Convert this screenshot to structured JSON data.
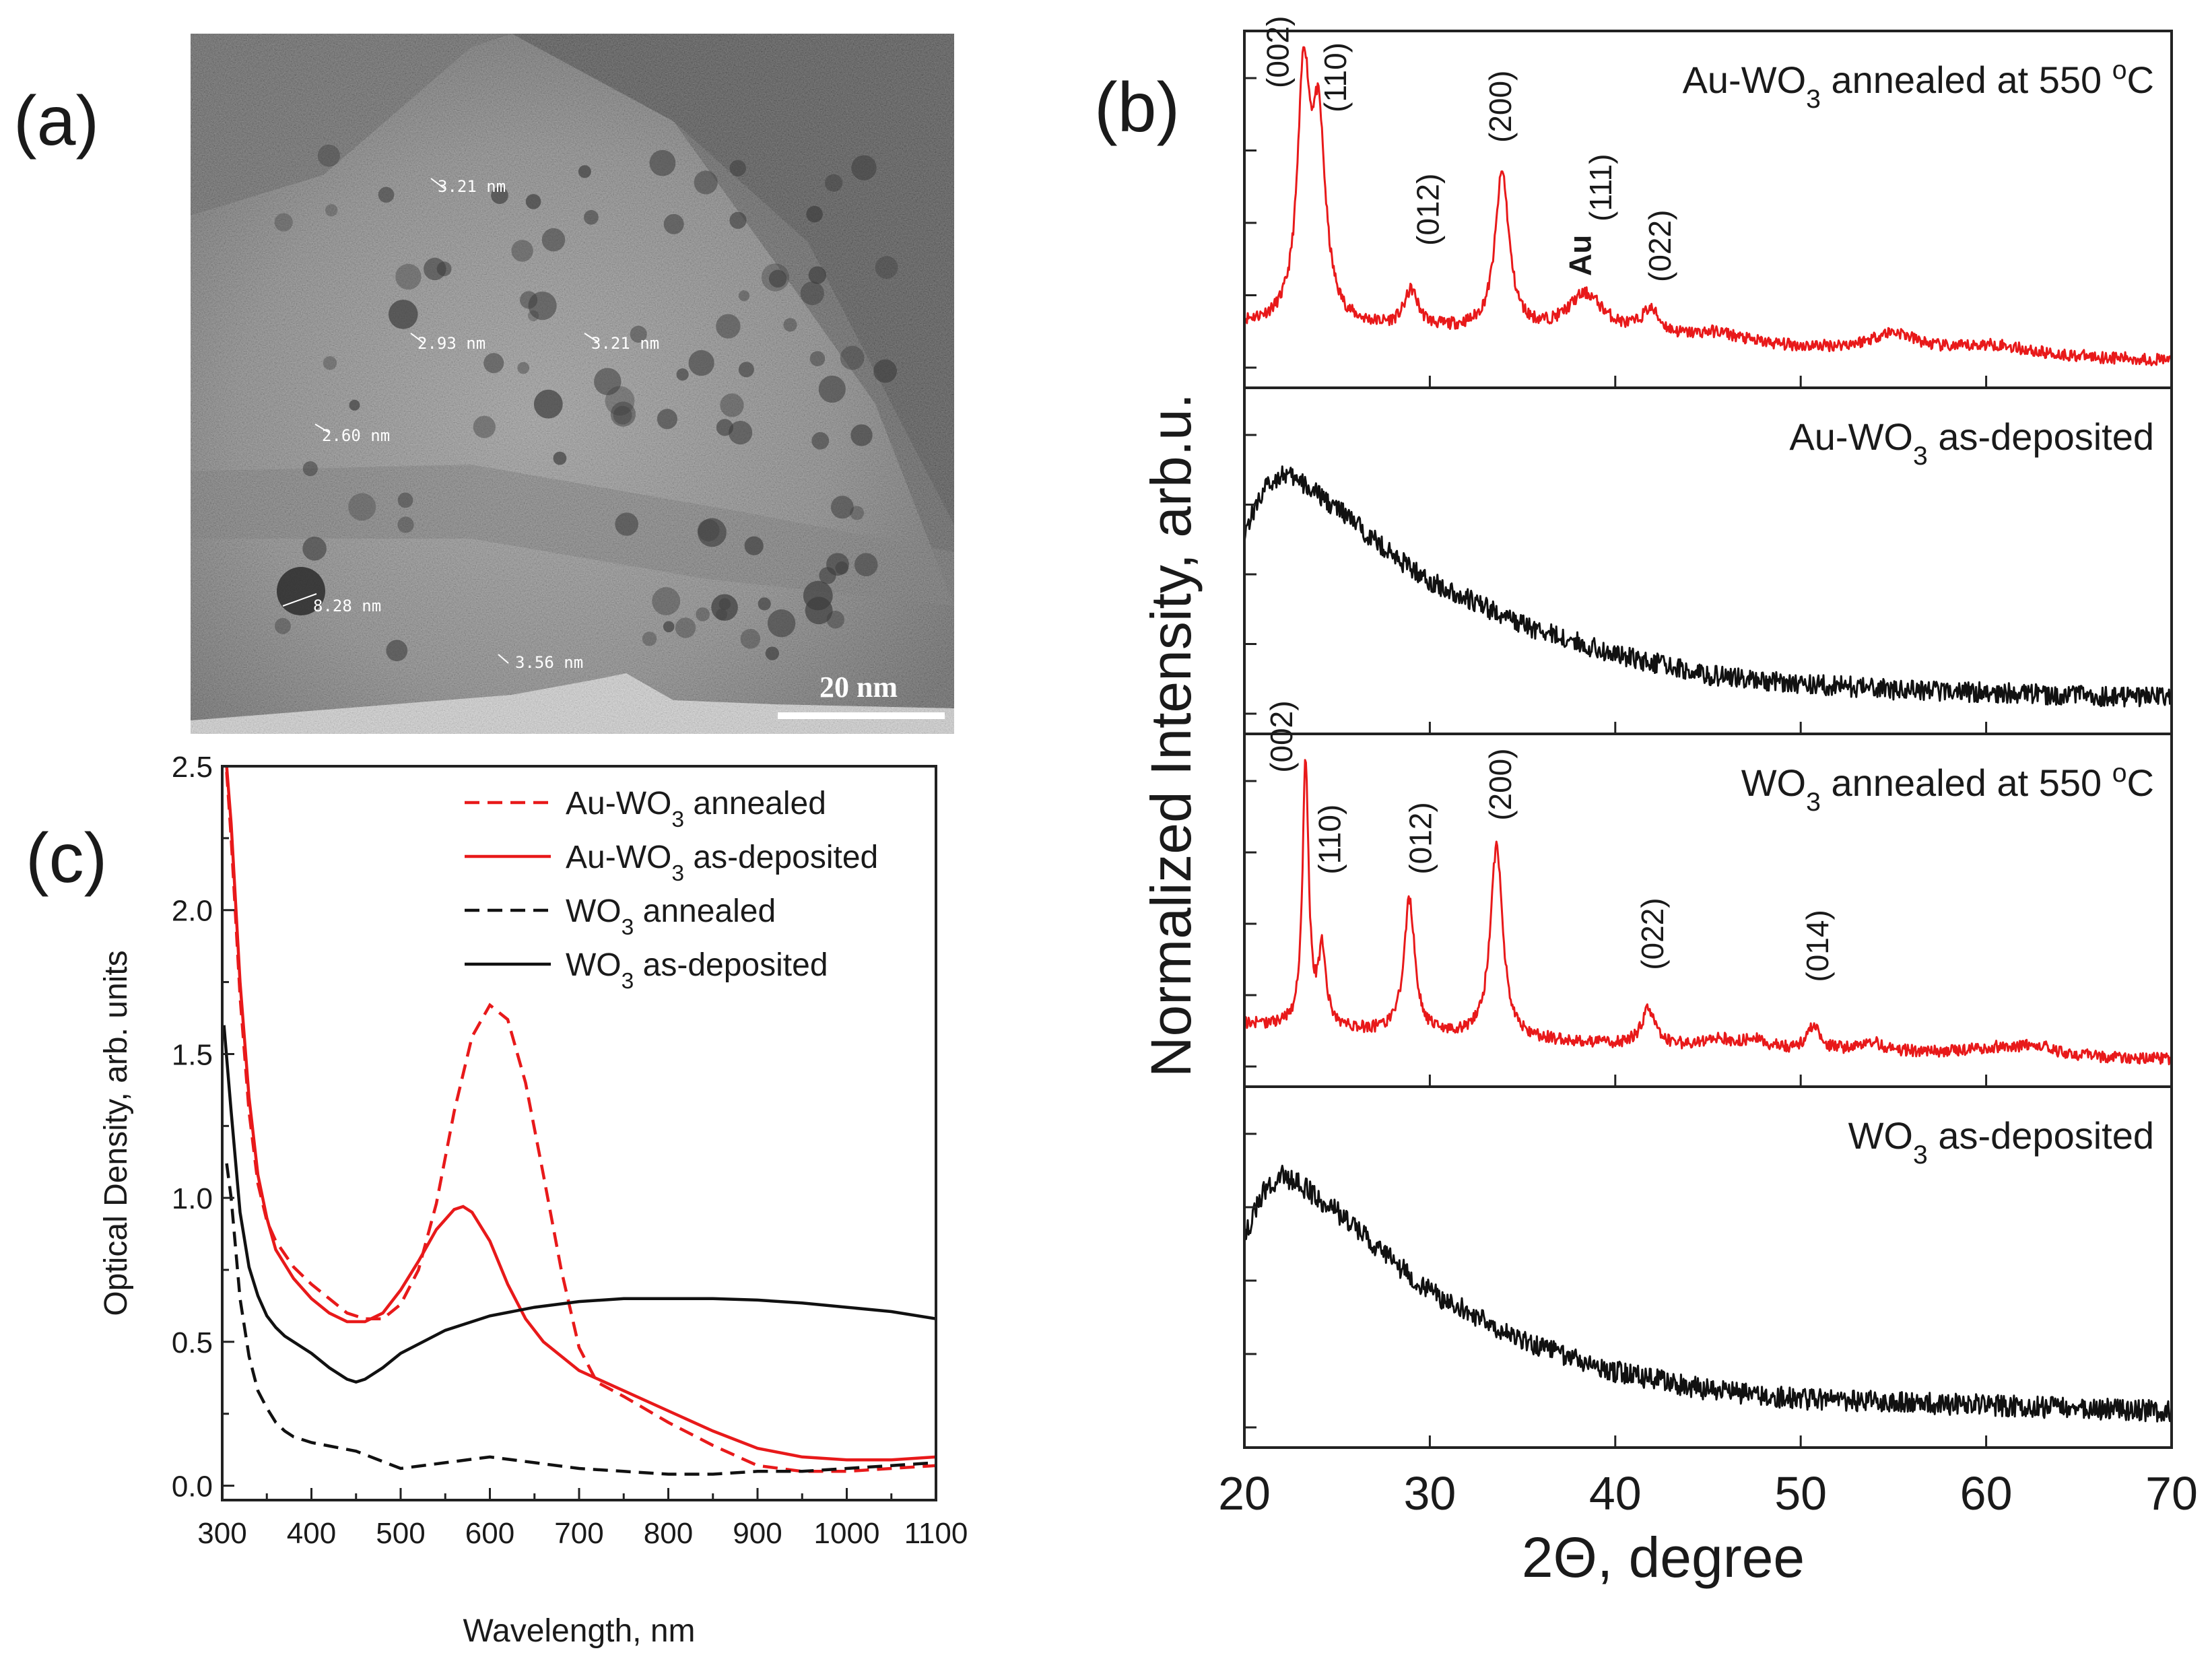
{
  "panel_labels": {
    "a": "(a)",
    "b": "(b)",
    "c": "(c)"
  },
  "tem": {
    "measurements": [
      "3.21 nm",
      "2.93 nm",
      "3.21 nm",
      "2.60 nm",
      "8.28 nm",
      "3.56 nm"
    ],
    "scale_bar": "20 nm",
    "colors": {
      "background": "#6d6d6d",
      "dark": "#1e1e1e",
      "particle": "#3c3c3c"
    }
  },
  "chart_data": [
    {
      "id": "c",
      "type": "line",
      "xlabel": "Wavelength, nm",
      "ylabel": "Optical Density, arb. units",
      "xlim": [
        300,
        1100
      ],
      "ylim": [
        -0.05,
        2.5
      ],
      "xticks": [
        300,
        400,
        500,
        600,
        700,
        800,
        900,
        1000,
        1100
      ],
      "xtick_labels": [
        "300",
        "400",
        "500",
        "600",
        "700",
        "800",
        "900",
        "1000",
        "1100"
      ],
      "yticks": [
        0.0,
        0.5,
        1.0,
        1.5,
        2.0,
        2.5
      ],
      "ytick_labels": [
        "0.0",
        "0.5",
        "1.0",
        "1.5",
        "2.0",
        "2.5"
      ],
      "legend": {
        "position": "top-right"
      },
      "series": [
        {
          "name": "Au-WO3 annealed",
          "label_main": "Au-WO",
          "label_sub": "3",
          "label_rest": " annealed",
          "color": "#e8191a",
          "dash": "dashed",
          "x": [
            305,
            310,
            320,
            330,
            340,
            350,
            360,
            380,
            400,
            420,
            440,
            460,
            480,
            500,
            520,
            540,
            560,
            580,
            600,
            620,
            640,
            660,
            680,
            700,
            720,
            750,
            800,
            850,
            900,
            950,
            1000,
            1050,
            1100
          ],
          "y": [
            2.48,
            2.25,
            1.7,
            1.3,
            1.05,
            0.92,
            0.85,
            0.76,
            0.7,
            0.65,
            0.6,
            0.58,
            0.58,
            0.63,
            0.75,
            0.98,
            1.3,
            1.56,
            1.67,
            1.62,
            1.4,
            1.08,
            0.75,
            0.48,
            0.36,
            0.31,
            0.22,
            0.14,
            0.07,
            0.05,
            0.05,
            0.06,
            0.07
          ]
        },
        {
          "name": "Au-WO3 as-deposited",
          "label_main": "Au-WO",
          "label_sub": "3",
          "label_rest": " as-deposited",
          "color": "#e8191a",
          "dash": "solid",
          "x": [
            305,
            310,
            320,
            330,
            340,
            350,
            360,
            380,
            400,
            420,
            440,
            460,
            480,
            500,
            520,
            540,
            560,
            570,
            580,
            600,
            620,
            640,
            660,
            700,
            750,
            800,
            850,
            900,
            950,
            1000,
            1050,
            1100
          ],
          "y": [
            2.5,
            2.3,
            1.75,
            1.35,
            1.08,
            0.93,
            0.82,
            0.72,
            0.65,
            0.6,
            0.57,
            0.57,
            0.6,
            0.68,
            0.78,
            0.89,
            0.96,
            0.97,
            0.95,
            0.85,
            0.7,
            0.58,
            0.5,
            0.4,
            0.33,
            0.26,
            0.19,
            0.13,
            0.1,
            0.09,
            0.09,
            0.1
          ]
        },
        {
          "name": "WO3 annealed",
          "label_main": "WO",
          "label_sub": "3",
          "label_rest": " annealed",
          "color": "#111111",
          "dash": "dashed",
          "x": [
            305,
            310,
            320,
            330,
            340,
            350,
            360,
            370,
            380,
            400,
            450,
            500,
            550,
            600,
            650,
            700,
            750,
            800,
            850,
            900,
            950,
            1000,
            1050,
            1100
          ],
          "y": [
            1.12,
            1.0,
            0.65,
            0.45,
            0.33,
            0.27,
            0.22,
            0.19,
            0.17,
            0.15,
            0.12,
            0.06,
            0.08,
            0.1,
            0.08,
            0.06,
            0.05,
            0.04,
            0.04,
            0.05,
            0.05,
            0.06,
            0.07,
            0.08
          ]
        },
        {
          "name": "WO3 as-deposited",
          "label_main": "WO",
          "label_sub": "3",
          "label_rest": " as-deposited",
          "color": "#111111",
          "dash": "solid",
          "x": [
            302,
            310,
            320,
            330,
            340,
            350,
            360,
            370,
            380,
            390,
            400,
            420,
            440,
            450,
            460,
            480,
            500,
            550,
            600,
            650,
            700,
            750,
            800,
            850,
            900,
            950,
            1000,
            1050,
            1100
          ],
          "y": [
            1.6,
            1.3,
            0.95,
            0.76,
            0.66,
            0.59,
            0.55,
            0.52,
            0.5,
            0.48,
            0.46,
            0.41,
            0.37,
            0.36,
            0.37,
            0.41,
            0.46,
            0.54,
            0.59,
            0.62,
            0.64,
            0.65,
            0.65,
            0.65,
            0.645,
            0.635,
            0.62,
            0.605,
            0.58
          ]
        }
      ]
    },
    {
      "id": "b",
      "type": "line",
      "xlabel_main": "2Θ, degree",
      "ylabel": "Normalized Intensity, arb.u.",
      "xlim": [
        20,
        70
      ],
      "xticks": [
        20,
        30,
        40,
        50,
        60,
        70
      ],
      "xtick_labels": [
        "20",
        "30",
        "40",
        "50",
        "60",
        "70"
      ],
      "stacked_panels": [
        {
          "title_main": "Au-WO",
          "title_sub": "3",
          "title_rest": " annealed at 550 ",
          "title_sup": "o",
          "title_end": "C",
          "color": "#e8191a",
          "noise": 0.02,
          "baseline": [
            [
              20,
              0.12
            ],
            [
              23,
              0.11
            ],
            [
              30,
              0.1
            ],
            [
              40,
              0.08
            ],
            [
              50,
              0.04
            ],
            [
              60,
              0.02
            ],
            [
              70,
              0.0
            ]
          ],
          "peaks": [
            {
              "pos": 23.2,
              "height": 0.78,
              "width": 0.4
            },
            {
              "pos": 24.0,
              "height": 0.62,
              "width": 0.45
            },
            {
              "pos": 29.0,
              "height": 0.12,
              "width": 0.45
            },
            {
              "pos": 33.9,
              "height": 0.52,
              "width": 0.45
            },
            {
              "pos": 38.4,
              "height": 0.13,
              "width": 1.2
            },
            {
              "pos": 41.9,
              "height": 0.08,
              "width": 0.6
            },
            {
              "pos": 45.5,
              "height": 0.03,
              "width": 1.5
            },
            {
              "pos": 55.0,
              "height": 0.06,
              "width": 1.5
            },
            {
              "pos": 60.5,
              "height": 0.03,
              "width": 2.0
            }
          ],
          "peak_labels": [
            {
              "text": "(002)",
              "x": 21.8,
              "level": 0.9
            },
            {
              "text": "(110)",
              "x": 24.9,
              "level": 0.82
            },
            {
              "text": "(012)",
              "x": 29.9,
              "level": 0.38
            },
            {
              "text": "(200)",
              "x": 33.8,
              "level": 0.72
            },
            {
              "text": "(111)",
              "x": 39.2,
              "level": 0.46
            },
            {
              "text": "(022)",
              "x": 42.4,
              "level": 0.26
            }
          ],
          "extra_label": {
            "text": "Au",
            "x": 38.1,
            "level": 0.28
          }
        },
        {
          "title_main": "Au-WO",
          "title_sub": "3",
          "title_rest": " as-deposited",
          "title_sup": "",
          "title_end": "",
          "color": "#111111",
          "noise": 0.035,
          "baseline": [
            [
              20,
              0.6
            ],
            [
              21,
              0.74
            ],
            [
              22,
              0.8
            ],
            [
              23,
              0.77
            ],
            [
              25,
              0.68
            ],
            [
              28,
              0.52
            ],
            [
              30,
              0.43
            ],
            [
              35,
              0.28
            ],
            [
              40,
              0.18
            ],
            [
              45,
              0.11
            ],
            [
              50,
              0.08
            ],
            [
              55,
              0.06
            ],
            [
              60,
              0.05
            ],
            [
              65,
              0.04
            ],
            [
              70,
              0.03
            ]
          ],
          "peaks": [],
          "peak_labels": []
        },
        {
          "title_main": "WO",
          "title_sub": "3",
          "title_rest": " annealed at 550 ",
          "title_sup": "o",
          "title_end": "C",
          "color": "#e8191a",
          "noise": 0.02,
          "baseline": [
            [
              20,
              0.12
            ],
            [
              25,
              0.1
            ],
            [
              30,
              0.08
            ],
            [
              40,
              0.05
            ],
            [
              50,
              0.03
            ],
            [
              60,
              0.02
            ],
            [
              70,
              0.0
            ]
          ],
          "peaks": [
            {
              "pos": 23.3,
              "height": 0.88,
              "width": 0.2
            },
            {
              "pos": 24.2,
              "height": 0.25,
              "width": 0.25
            },
            {
              "pos": 28.9,
              "height": 0.45,
              "width": 0.35
            },
            {
              "pos": 33.6,
              "height": 0.64,
              "width": 0.4
            },
            {
              "pos": 41.8,
              "height": 0.12,
              "width": 0.45
            },
            {
              "pos": 45.5,
              "height": 0.03,
              "width": 0.8
            },
            {
              "pos": 47.5,
              "height": 0.03,
              "width": 0.8
            },
            {
              "pos": 50.7,
              "height": 0.08,
              "width": 0.4
            },
            {
              "pos": 53.8,
              "height": 0.03,
              "width": 0.8
            },
            {
              "pos": 60.5,
              "height": 0.02,
              "width": 1.5
            },
            {
              "pos": 62.8,
              "height": 0.03,
              "width": 1.0
            }
          ],
          "peak_labels": [
            {
              "text": "(002)",
              "x": 22.0,
              "level": 0.96
            },
            {
              "text": "(110)",
              "x": 24.6,
              "level": 0.62
            },
            {
              "text": "(012)",
              "x": 29.5,
              "level": 0.62
            },
            {
              "text": "(200)",
              "x": 33.8,
              "level": 0.8
            },
            {
              "text": "(022)",
              "x": 42.0,
              "level": 0.3
            },
            {
              "text": "(014)",
              "x": 50.9,
              "level": 0.26
            }
          ]
        },
        {
          "title_main": "WO",
          "title_sub": "3",
          "title_rest": " as-deposited",
          "title_sup": "",
          "title_end": "",
          "color": "#111111",
          "noise": 0.035,
          "baseline": [
            [
              20,
              0.6
            ],
            [
              21,
              0.74
            ],
            [
              22,
              0.8
            ],
            [
              23,
              0.77
            ],
            [
              25,
              0.68
            ],
            [
              28,
              0.52
            ],
            [
              30,
              0.42
            ],
            [
              35,
              0.26
            ],
            [
              40,
              0.16
            ],
            [
              45,
              0.1
            ],
            [
              50,
              0.07
            ],
            [
              55,
              0.06
            ],
            [
              60,
              0.05
            ],
            [
              65,
              0.04
            ],
            [
              70,
              0.03
            ]
          ],
          "peaks": [],
          "peak_labels": []
        }
      ]
    }
  ]
}
